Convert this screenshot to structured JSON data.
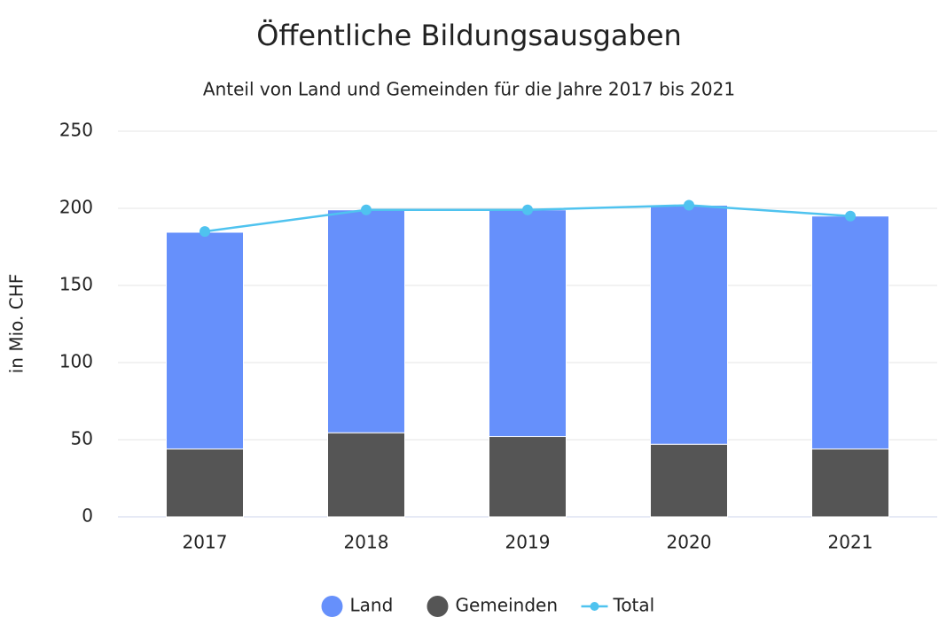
{
  "chart_data": {
    "type": "bar",
    "title": "Öffentliche Bildungsausgaben",
    "subtitle": "Anteil von Land und Gemeinden für die Jahre 2017 bis 2021",
    "y_label": "in Mio. CHF",
    "categories": [
      "2017",
      "2018",
      "2019",
      "2020",
      "2021"
    ],
    "stacked": true,
    "series": [
      {
        "name": "Land",
        "color": "#6690fb",
        "values": [
          140.5,
          144.5,
          147,
          155,
          151
        ]
      },
      {
        "name": "Gemeinden",
        "color": "#555555",
        "values": [
          44,
          54.5,
          52,
          47,
          44
        ]
      },
      {
        "name": "Total",
        "color": "#4fc3ef",
        "type": "line",
        "values": [
          185,
          199,
          199,
          202,
          195
        ]
      }
    ],
    "ylim": [
      0,
      250
    ],
    "yticks": [
      0,
      50,
      100,
      150,
      200,
      250
    ],
    "grid": true,
    "legend": "bottom"
  }
}
